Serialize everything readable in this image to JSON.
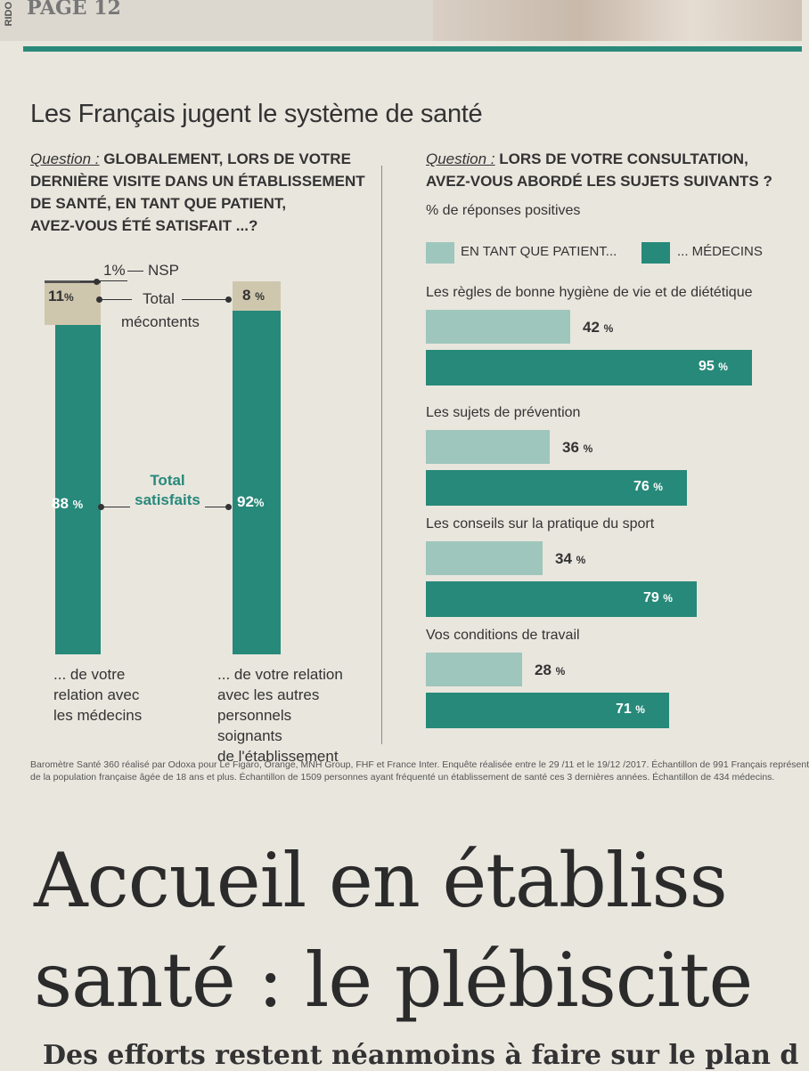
{
  "header": {
    "page_label": "PAGE 12",
    "side_mark": "RIDO"
  },
  "title": "Les Français jugent le système de santé",
  "left": {
    "question_prefix": "Question :",
    "question_lines": [
      "GLOBALEMENT, LORS DE VOTRE",
      "DERNIÈRE VISITE DANS UN ÉTABLISSEMENT",
      "DE SANTÉ, EN TANT QUE PATIENT,",
      "AVEZ-VOUS ÉTÉ SATISFAIT ...?"
    ],
    "nsp_value": "1%",
    "nsp_label": "NSP",
    "mecontents_label_1": "Total",
    "mecontents_label_2": "mécontents",
    "satisfaits_label_1": "Total",
    "satisfaits_label_2": "satisfaits",
    "bar1": {
      "unsat_label": "11",
      "sat_label": "88",
      "caption": [
        "... de votre",
        "relation avec",
        "les médecins"
      ]
    },
    "bar2": {
      "unsat_label": "8",
      "sat_label": "92",
      "caption": [
        "... de votre relation",
        "avec les autres",
        "personnels soignants",
        "de l'établissement"
      ]
    },
    "pct": "%"
  },
  "right": {
    "question_prefix": "Question :",
    "question_lines": [
      "LORS DE VOTRE CONSULTATION,",
      "AVEZ-VOUS ABORDÉ LES SUJETS SUIVANTS ?"
    ],
    "subtitle": "% de réponses positives",
    "legend_patient": "EN TANT QUE PATIENT...",
    "legend_medecins": "... MÉDECINS"
  },
  "chart_data": [
    {
      "type": "bar",
      "orientation": "vertical-stacked",
      "categories": [
        "... de votre relation avec les médecins",
        "... de votre relation avec les autres personnels soignants de l'établissement"
      ],
      "series": [
        {
          "name": "Total satisfaits",
          "values": [
            88,
            92
          ]
        },
        {
          "name": "Total mécontents",
          "values": [
            11,
            8
          ]
        },
        {
          "name": "NSP",
          "values": [
            1,
            0
          ]
        }
      ],
      "colors": {
        "satisfaits": "#27897a",
        "mecontents": "#cfc6ae"
      }
    },
    {
      "type": "bar",
      "orientation": "horizontal",
      "categories": [
        "Les règles de bonne hygiène de vie et de diététique",
        "Les sujets de prévention",
        "Les conseils sur la pratique du sport",
        "Vos conditions de travail"
      ],
      "series": [
        {
          "name": "EN TANT QUE PATIENT...",
          "values": [
            42,
            36,
            34,
            28
          ]
        },
        {
          "name": "... MÉDECINS",
          "values": [
            95,
            76,
            79,
            71
          ]
        }
      ],
      "xlim": [
        0,
        100
      ],
      "colors": {
        "patient": "#9fc6bc",
        "medecins": "#27897a"
      }
    }
  ],
  "footnote": [
    "Baromètre Santé 360 réalisé par Odoxa pour Le Figaro, Orange, MNH Group, FHF et France Inter. Enquête réalisée entre le 29 /11 et le 19/12 /2017. Échantillon de 991 Français représent",
    "de la population française âgée de 18 ans et plus. Échantillon de 1509 personnes ayant fréquenté un établissement de santé ces 3 dernières années. Échantillon de 434 médecins."
  ],
  "article": {
    "headline_1": "Accueil en établiss",
    "headline_2": "santé : le plébiscite",
    "subhead": "Des efforts restent néanmoins à faire sur le plan d"
  }
}
